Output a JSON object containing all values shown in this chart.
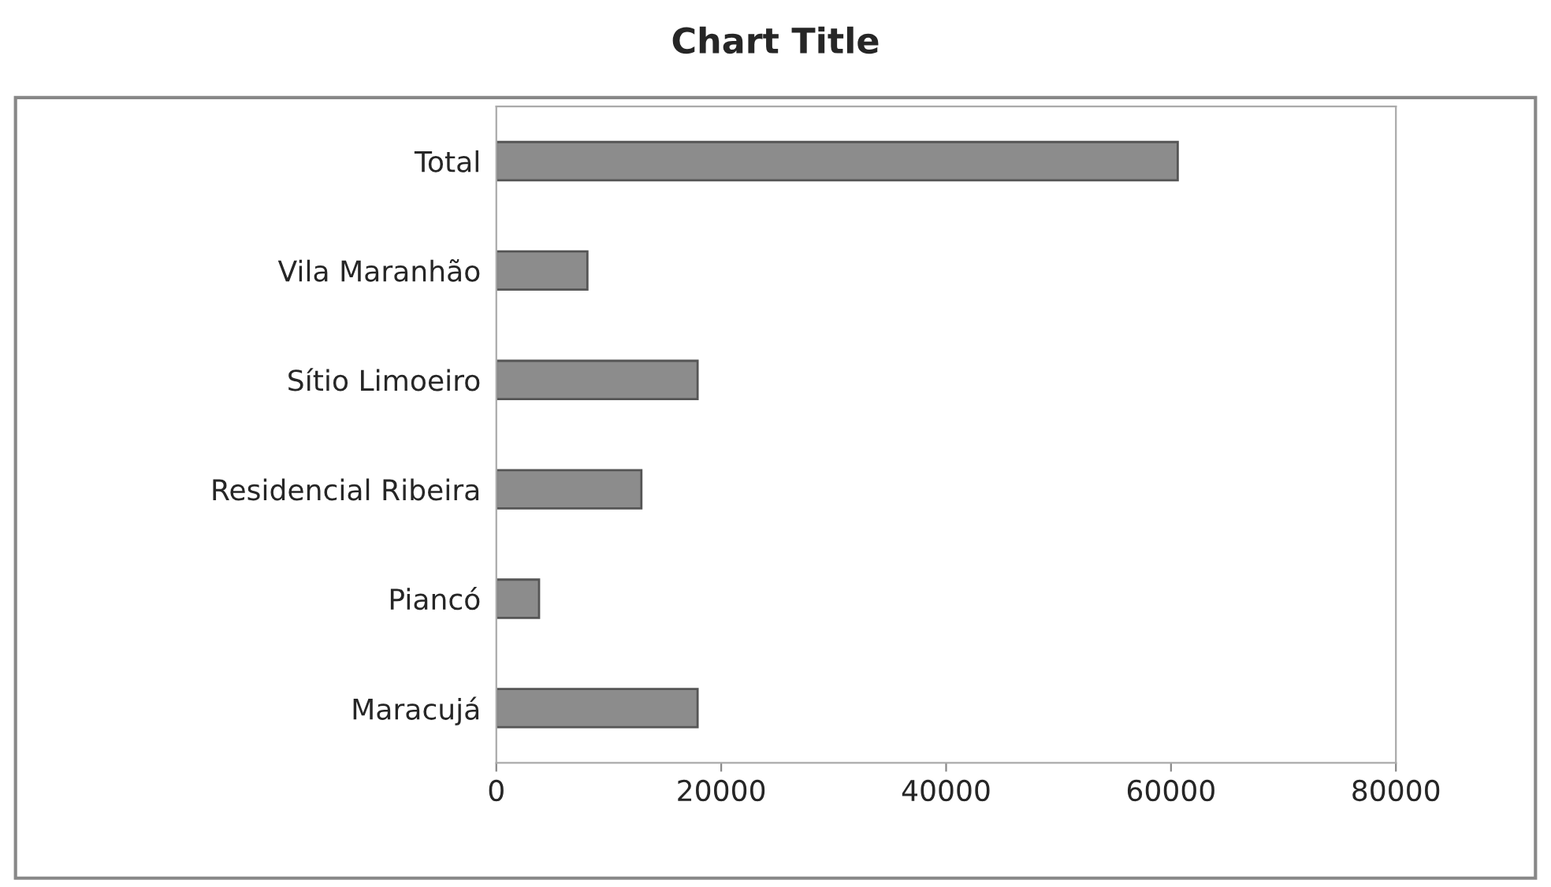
{
  "chart_data": {
    "type": "bar",
    "orientation": "horizontal",
    "title": "Chart Title",
    "categories": [
      "Total",
      "Vila Maranhão",
      "Sítio Limoeiro",
      "Residencial Ribeira",
      "Piancó",
      "Maracujá"
    ],
    "values": [
      60600,
      8100,
      17900,
      12900,
      3800,
      17900
    ],
    "color": "#8c8c8c",
    "xlim": [
      0,
      80000
    ],
    "xticks": [
      0,
      20000,
      40000,
      60000,
      80000
    ],
    "grid": false
  }
}
